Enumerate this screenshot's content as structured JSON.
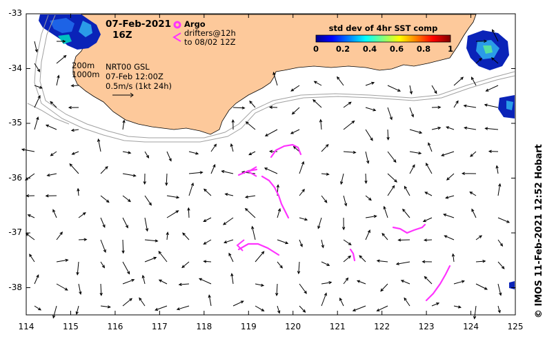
{
  "map": {
    "date": "07-Feb-2021",
    "time": "16Z",
    "argo_label": "Argo",
    "drifters_line1": "drifters@12h",
    "drifters_line2": "to 08/02 12Z",
    "product": "NRT00 GSL",
    "product_date": "07-Feb 12:00Z",
    "speed_scale": "0.5m/s (1kt 24h)",
    "depth_200": "200m",
    "depth_1000": "1000m",
    "credit": "© IMOS 11-Feb-2021 12:52 Hobart",
    "colorbar": {
      "title": "std dev of 4hr SST comp",
      "ticks": [
        "0",
        "0.2",
        "0.4",
        "0.6",
        "0.8",
        "1"
      ]
    },
    "lat_ticks": [
      "-33",
      "-34",
      "-35",
      "-36",
      "-37",
      "-38"
    ],
    "lon_ticks": [
      "114",
      "115",
      "116",
      "117",
      "118",
      "119",
      "120",
      "121",
      "122",
      "123",
      "124",
      "125"
    ],
    "colors": {
      "land": "#fdc99b",
      "drifter": "#ff33ff",
      "isobath": "#a0a0a0"
    }
  }
}
